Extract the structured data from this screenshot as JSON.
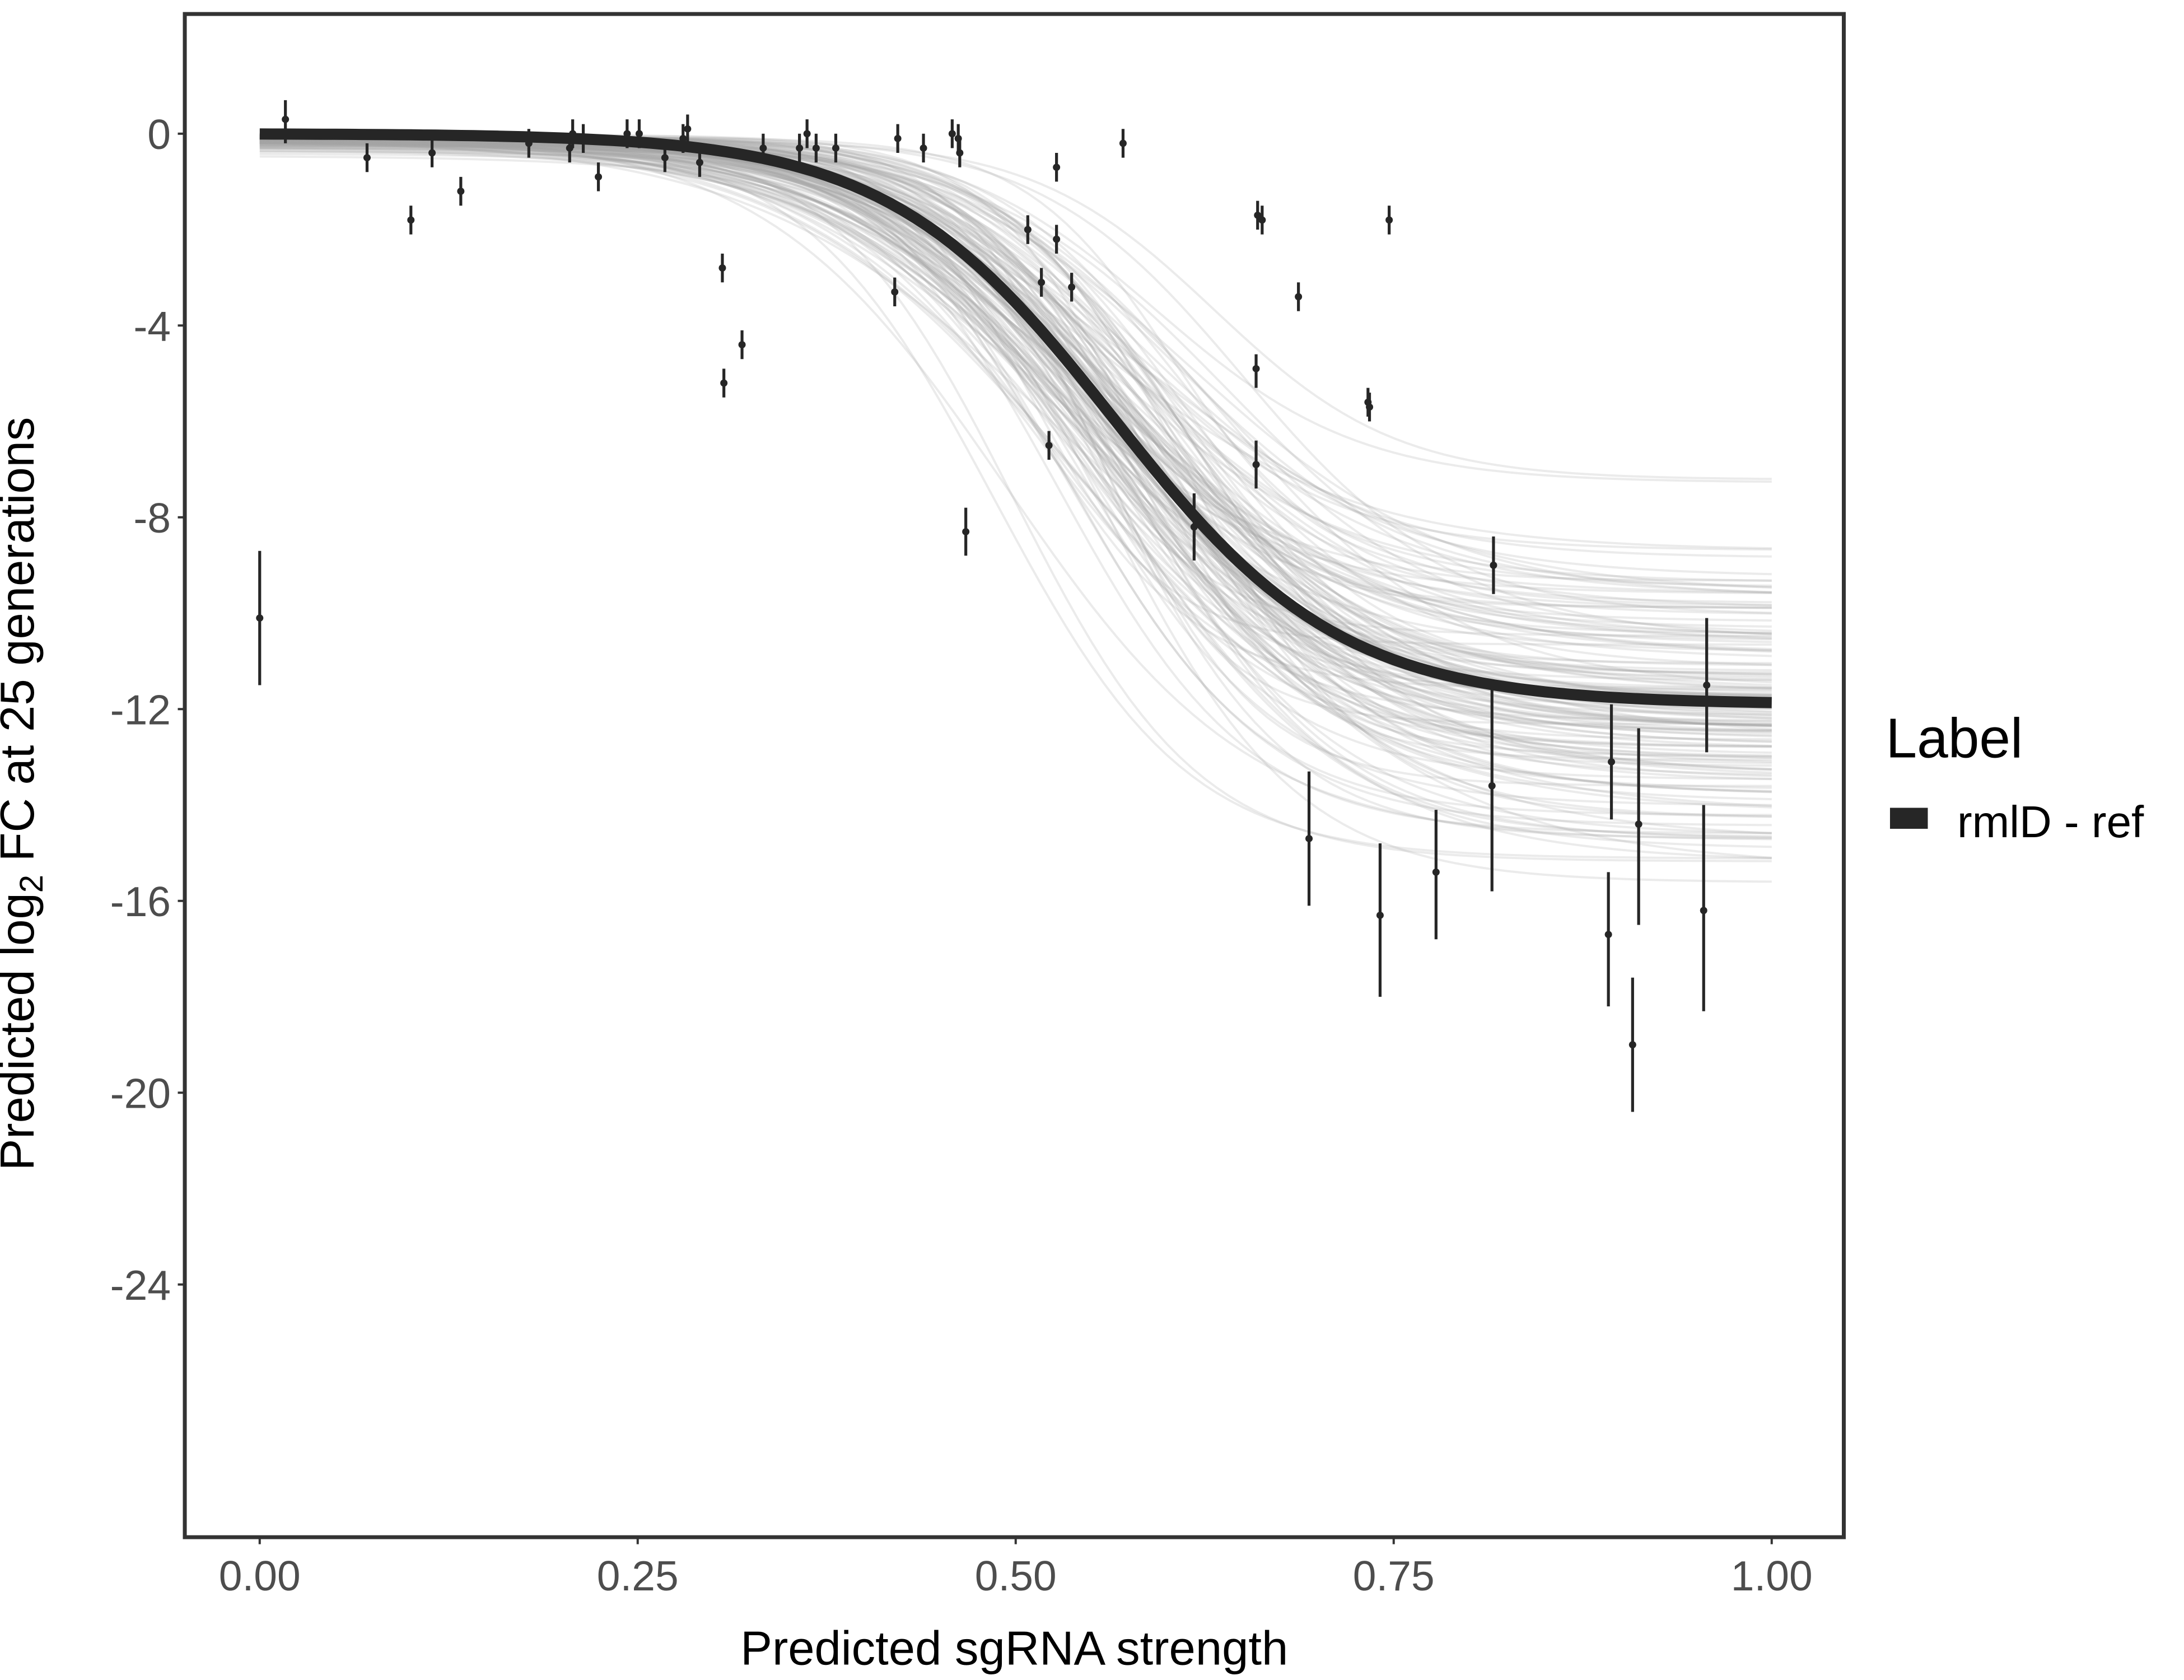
{
  "chart_data": {
    "type": "scatter",
    "title": "",
    "xlabel": "Predicted sgRNA strength",
    "ylabel": {
      "prefix": "Predicted  log",
      "sub": "2",
      "suffix": " FC at 25 generations"
    },
    "xlim": [
      -0.05,
      1.025
    ],
    "ylim": [
      -29.3,
      2.5
    ],
    "x_ticks": [
      0.0,
      0.25,
      0.5,
      0.75,
      1.0
    ],
    "x_tick_labels": [
      "0.00",
      "0.25",
      "0.50",
      "0.75",
      "1.00"
    ],
    "y_ticks": [
      0,
      -4,
      -8,
      -12,
      -16,
      -20,
      -24
    ],
    "y_tick_labels": [
      "0",
      "-4",
      "-8",
      "-12",
      "-16",
      "-20",
      "-24"
    ],
    "grid": false,
    "legend": {
      "title": "Label",
      "entries": [
        {
          "name": "rmlD - ref",
          "color": "#262626"
        }
      ],
      "position": "right"
    },
    "colors": {
      "fit_line": "#262626",
      "posterior_draws": "#a6a6a6",
      "points": "#262626",
      "frame": "#333333"
    },
    "fit_curve": {
      "model": "logistic",
      "upper": 0.0,
      "lower": -11.9,
      "midpoint": 0.565,
      "scale": 0.075,
      "n_posterior_draws": 150
    },
    "points": [
      {
        "x": 0.0,
        "y": -10.1,
        "ymin": -11.5,
        "ymax": -8.7
      },
      {
        "x": 0.017,
        "y": 0.3,
        "ymin": -0.2,
        "ymax": 0.7
      },
      {
        "x": 0.071,
        "y": -0.5,
        "ymin": -0.8,
        "ymax": -0.2
      },
      {
        "x": 0.1,
        "y": -1.8,
        "ymin": -2.1,
        "ymax": -1.5
      },
      {
        "x": 0.114,
        "y": -0.4,
        "ymin": -0.7,
        "ymax": -0.1
      },
      {
        "x": 0.133,
        "y": -1.2,
        "ymin": -1.5,
        "ymax": -0.9
      },
      {
        "x": 0.178,
        "y": -0.2,
        "ymin": -0.5,
        "ymax": 0.1
      },
      {
        "x": 0.205,
        "y": -0.3,
        "ymin": -0.6,
        "ymax": 0.0
      },
      {
        "x": 0.207,
        "y": 0.0,
        "ymin": -0.3,
        "ymax": 0.3
      },
      {
        "x": 0.214,
        "y": -0.1,
        "ymin": -0.4,
        "ymax": 0.2
      },
      {
        "x": 0.224,
        "y": -0.9,
        "ymin": -1.2,
        "ymax": -0.6
      },
      {
        "x": 0.243,
        "y": 0.0,
        "ymin": -0.3,
        "ymax": 0.3
      },
      {
        "x": 0.251,
        "y": 0.0,
        "ymin": -0.3,
        "ymax": 0.3
      },
      {
        "x": 0.268,
        "y": -0.5,
        "ymin": -0.8,
        "ymax": -0.2
      },
      {
        "x": 0.28,
        "y": -0.1,
        "ymin": -0.4,
        "ymax": 0.2
      },
      {
        "x": 0.283,
        "y": 0.1,
        "ymin": -0.2,
        "ymax": 0.4
      },
      {
        "x": 0.291,
        "y": -0.6,
        "ymin": -0.9,
        "ymax": -0.3
      },
      {
        "x": 0.306,
        "y": -2.8,
        "ymin": -3.1,
        "ymax": -2.5
      },
      {
        "x": 0.307,
        "y": -5.2,
        "ymin": -5.5,
        "ymax": -4.9
      },
      {
        "x": 0.319,
        "y": -4.4,
        "ymin": -4.7,
        "ymax": -4.1
      },
      {
        "x": 0.333,
        "y": -0.3,
        "ymin": -0.6,
        "ymax": 0.0
      },
      {
        "x": 0.357,
        "y": -0.3,
        "ymin": -0.6,
        "ymax": 0.0
      },
      {
        "x": 0.362,
        "y": 0.0,
        "ymin": -0.3,
        "ymax": 0.3
      },
      {
        "x": 0.368,
        "y": -0.3,
        "ymin": -0.6,
        "ymax": 0.0
      },
      {
        "x": 0.381,
        "y": -0.3,
        "ymin": -0.6,
        "ymax": 0.0
      },
      {
        "x": 0.42,
        "y": -3.3,
        "ymin": -3.6,
        "ymax": -3.0
      },
      {
        "x": 0.422,
        "y": -0.1,
        "ymin": -0.4,
        "ymax": 0.2
      },
      {
        "x": 0.439,
        "y": -0.3,
        "ymin": -0.6,
        "ymax": 0.0
      },
      {
        "x": 0.458,
        "y": 0.0,
        "ymin": -0.3,
        "ymax": 0.3
      },
      {
        "x": 0.462,
        "y": -0.1,
        "ymin": -0.4,
        "ymax": 0.2
      },
      {
        "x": 0.463,
        "y": -0.4,
        "ymin": -0.7,
        "ymax": -0.1
      },
      {
        "x": 0.467,
        "y": -8.3,
        "ymin": -8.8,
        "ymax": -7.8
      },
      {
        "x": 0.508,
        "y": -2.0,
        "ymin": -2.3,
        "ymax": -1.7
      },
      {
        "x": 0.517,
        "y": -3.1,
        "ymin": -3.4,
        "ymax": -2.8
      },
      {
        "x": 0.522,
        "y": -6.5,
        "ymin": -6.8,
        "ymax": -6.2
      },
      {
        "x": 0.527,
        "y": -0.7,
        "ymin": -1.0,
        "ymax": -0.4
      },
      {
        "x": 0.527,
        "y": -2.2,
        "ymin": -2.5,
        "ymax": -1.9
      },
      {
        "x": 0.537,
        "y": -3.2,
        "ymin": -3.5,
        "ymax": -2.9
      },
      {
        "x": 0.571,
        "y": -0.2,
        "ymin": -0.5,
        "ymax": 0.1
      },
      {
        "x": 0.618,
        "y": -8.2,
        "ymin": -8.9,
        "ymax": -7.5
      },
      {
        "x": 0.659,
        "y": -4.9,
        "ymin": -5.3,
        "ymax": -4.6
      },
      {
        "x": 0.659,
        "y": -6.9,
        "ymin": -7.4,
        "ymax": -6.4
      },
      {
        "x": 0.66,
        "y": -1.7,
        "ymin": -2.0,
        "ymax": -1.4
      },
      {
        "x": 0.663,
        "y": -1.8,
        "ymin": -2.1,
        "ymax": -1.5
      },
      {
        "x": 0.687,
        "y": -3.4,
        "ymin": -3.7,
        "ymax": -3.1
      },
      {
        "x": 0.694,
        "y": -14.7,
        "ymin": -16.1,
        "ymax": -13.3
      },
      {
        "x": 0.733,
        "y": -5.6,
        "ymin": -5.9,
        "ymax": -5.3
      },
      {
        "x": 0.734,
        "y": -5.7,
        "ymin": -6.0,
        "ymax": -5.4
      },
      {
        "x": 0.741,
        "y": -16.3,
        "ymin": -18.0,
        "ymax": -14.8
      },
      {
        "x": 0.747,
        "y": -1.8,
        "ymin": -2.1,
        "ymax": -1.5
      },
      {
        "x": 0.778,
        "y": -15.4,
        "ymin": -16.8,
        "ymax": -14.1
      },
      {
        "x": 0.815,
        "y": -13.6,
        "ymin": -15.8,
        "ymax": -11.4
      },
      {
        "x": 0.816,
        "y": -9.0,
        "ymin": -9.6,
        "ymax": -8.4
      },
      {
        "x": 0.892,
        "y": -16.7,
        "ymin": -18.2,
        "ymax": -15.4
      },
      {
        "x": 0.894,
        "y": -13.1,
        "ymin": -14.3,
        "ymax": -11.9
      },
      {
        "x": 0.908,
        "y": -19.0,
        "ymin": -20.4,
        "ymax": -17.6
      },
      {
        "x": 0.912,
        "y": -14.4,
        "ymin": -16.5,
        "ymax": -12.4
      },
      {
        "x": 0.955,
        "y": -16.2,
        "ymin": -18.3,
        "ymax": -14.0
      },
      {
        "x": 0.957,
        "y": -11.5,
        "ymin": -12.9,
        "ymax": -10.1
      }
    ]
  }
}
